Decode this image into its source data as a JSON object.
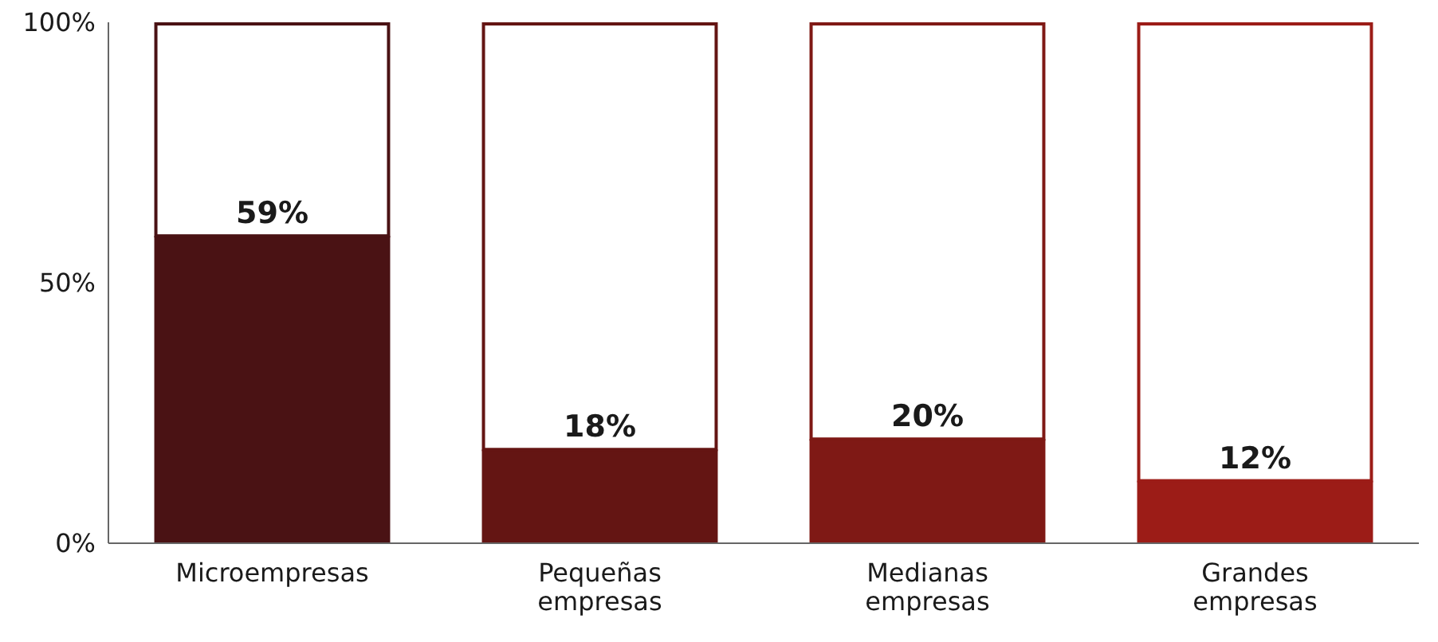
{
  "chart_data": {
    "type": "bar",
    "stacked": true,
    "categories": [
      "Microempresas",
      "Pequeñas empresas",
      "Medianas empresas",
      "Grandes empresas"
    ],
    "series": [
      {
        "colors": [
          "#4a1214",
          "#641513",
          "#7f1915",
          "#9c1c17"
        ],
        "values": [
          59,
          18,
          20,
          12
        ],
        "value_labels": [
          "59%",
          "18%",
          "20%",
          "12%"
        ]
      },
      {
        "color": "#ffffff",
        "values": [
          41,
          82,
          80,
          88
        ]
      }
    ],
    "ylim": [
      0,
      100
    ],
    "yticks": [
      {
        "value": 0,
        "label": "0%"
      },
      {
        "value": 50,
        "label": "50%"
      },
      {
        "value": 100,
        "label": "100%"
      }
    ],
    "grid": false
  }
}
